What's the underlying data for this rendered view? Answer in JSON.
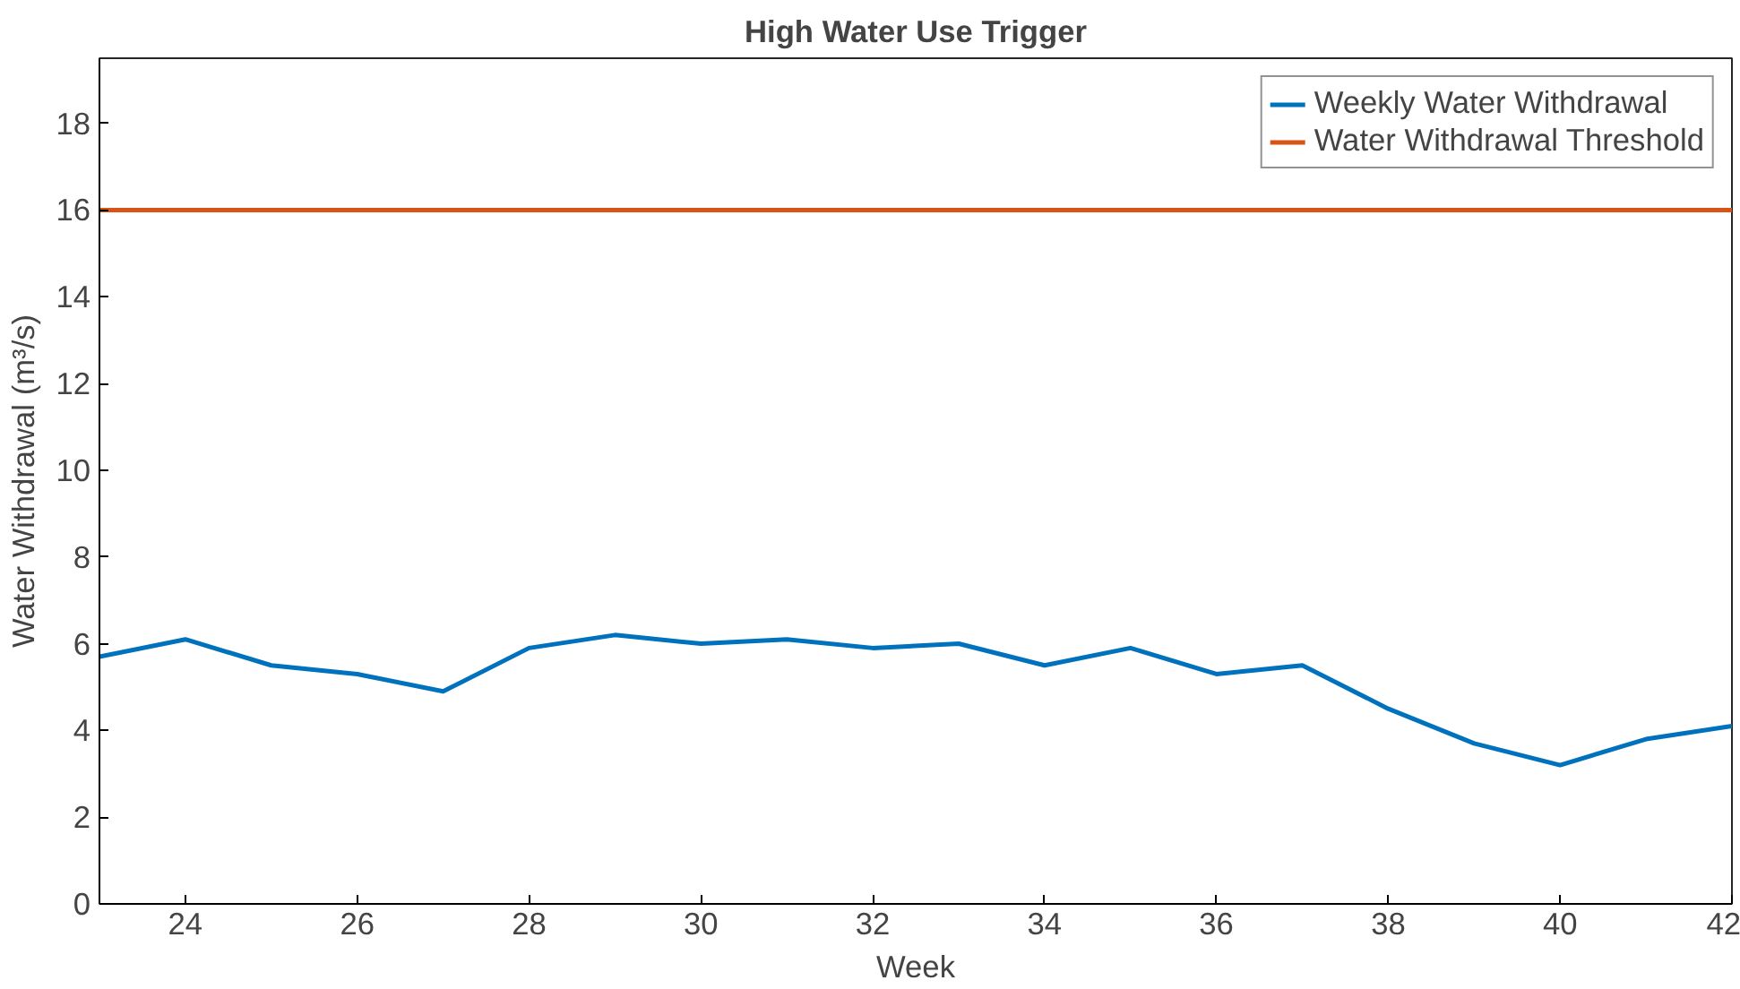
{
  "chart_data": {
    "type": "line",
    "title": "High Water Use Trigger",
    "xlabel": "Week",
    "ylabel": "Water Withdrawal (m³/s)",
    "x": [
      23,
      24,
      25,
      26,
      27,
      28,
      29,
      30,
      31,
      32,
      33,
      34,
      35,
      36,
      37,
      38,
      39,
      40,
      41,
      42
    ],
    "series": [
      {
        "name": "Weekly Water Withdrawal",
        "color": "#0072bd",
        "values": [
          5.7,
          6.1,
          5.5,
          5.3,
          4.9,
          5.9,
          6.2,
          6.0,
          6.1,
          5.9,
          6.0,
          5.5,
          5.9,
          5.3,
          5.5,
          4.5,
          3.7,
          3.2,
          3.8,
          4.1
        ]
      },
      {
        "name": "Water Withdrawal Threshold",
        "color": "#d95319",
        "x": [
          23,
          42
        ],
        "values": [
          16,
          16
        ]
      }
    ],
    "xlim": [
      23,
      42
    ],
    "xticks": [
      24,
      26,
      28,
      30,
      32,
      34,
      36,
      38,
      40,
      42
    ],
    "ylim": [
      0,
      19.5
    ],
    "yticks": [
      0,
      2,
      4,
      6,
      8,
      10,
      12,
      14,
      16,
      18
    ],
    "grid": false,
    "legend": "top right",
    "marker": "none",
    "line_style": "solid"
  }
}
